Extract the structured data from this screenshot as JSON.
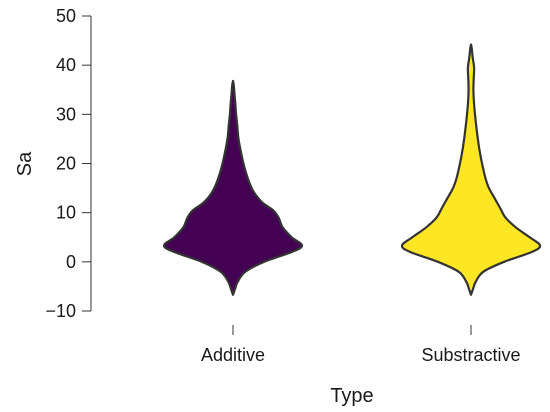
{
  "chart_data": {
    "type": "violin",
    "xlabel": "Type",
    "ylabel": "Sa",
    "ylim": [
      -10,
      50
    ],
    "yticks": [
      -10,
      0,
      10,
      20,
      30,
      40,
      50
    ],
    "categories": [
      "Additive",
      "Substractive"
    ],
    "series": [
      {
        "category": "Additive",
        "color": "#440154",
        "min": -6.7,
        "max": 36.8,
        "density_profile": [
          {
            "y": -6.7,
            "w": 0.0
          },
          {
            "y": -5.5,
            "w": 0.03
          },
          {
            "y": -4,
            "w": 0.07
          },
          {
            "y": -2,
            "w": 0.18
          },
          {
            "y": 0,
            "w": 0.45
          },
          {
            "y": 2,
            "w": 0.85
          },
          {
            "y": 3.3,
            "w": 1.0
          },
          {
            "y": 5,
            "w": 0.85
          },
          {
            "y": 7,
            "w": 0.72
          },
          {
            "y": 9,
            "w": 0.66
          },
          {
            "y": 10.5,
            "w": 0.58
          },
          {
            "y": 12,
            "w": 0.43
          },
          {
            "y": 14,
            "w": 0.31
          },
          {
            "y": 16,
            "w": 0.24
          },
          {
            "y": 19,
            "w": 0.17
          },
          {
            "y": 22,
            "w": 0.12
          },
          {
            "y": 25,
            "w": 0.08
          },
          {
            "y": 28,
            "w": 0.06
          },
          {
            "y": 30,
            "w": 0.045
          },
          {
            "y": 32,
            "w": 0.035
          },
          {
            "y": 34,
            "w": 0.022
          },
          {
            "y": 35.8,
            "w": 0.012
          },
          {
            "y": 36.8,
            "w": 0.0
          }
        ]
      },
      {
        "category": "Substractive",
        "color": "#fde725",
        "min": -6.7,
        "max": 44.2,
        "density_profile": [
          {
            "y": -6.7,
            "w": 0.0
          },
          {
            "y": -5.5,
            "w": 0.03
          },
          {
            "y": -4,
            "w": 0.07
          },
          {
            "y": -2,
            "w": 0.18
          },
          {
            "y": 0,
            "w": 0.48
          },
          {
            "y": 2,
            "w": 0.88
          },
          {
            "y": 3.3,
            "w": 1.0
          },
          {
            "y": 5,
            "w": 0.85
          },
          {
            "y": 7,
            "w": 0.65
          },
          {
            "y": 9,
            "w": 0.5
          },
          {
            "y": 11,
            "w": 0.42
          },
          {
            "y": 13,
            "w": 0.34
          },
          {
            "y": 15,
            "w": 0.26
          },
          {
            "y": 17,
            "w": 0.21
          },
          {
            "y": 20,
            "w": 0.16
          },
          {
            "y": 23,
            "w": 0.12
          },
          {
            "y": 26,
            "w": 0.09
          },
          {
            "y": 29,
            "w": 0.065
          },
          {
            "y": 32,
            "w": 0.045
          },
          {
            "y": 35,
            "w": 0.035
          },
          {
            "y": 37.5,
            "w": 0.04
          },
          {
            "y": 39.5,
            "w": 0.045
          },
          {
            "y": 41.5,
            "w": 0.025
          },
          {
            "y": 43.5,
            "w": 0.01
          },
          {
            "y": 44.2,
            "w": 0.0
          }
        ]
      }
    ]
  }
}
